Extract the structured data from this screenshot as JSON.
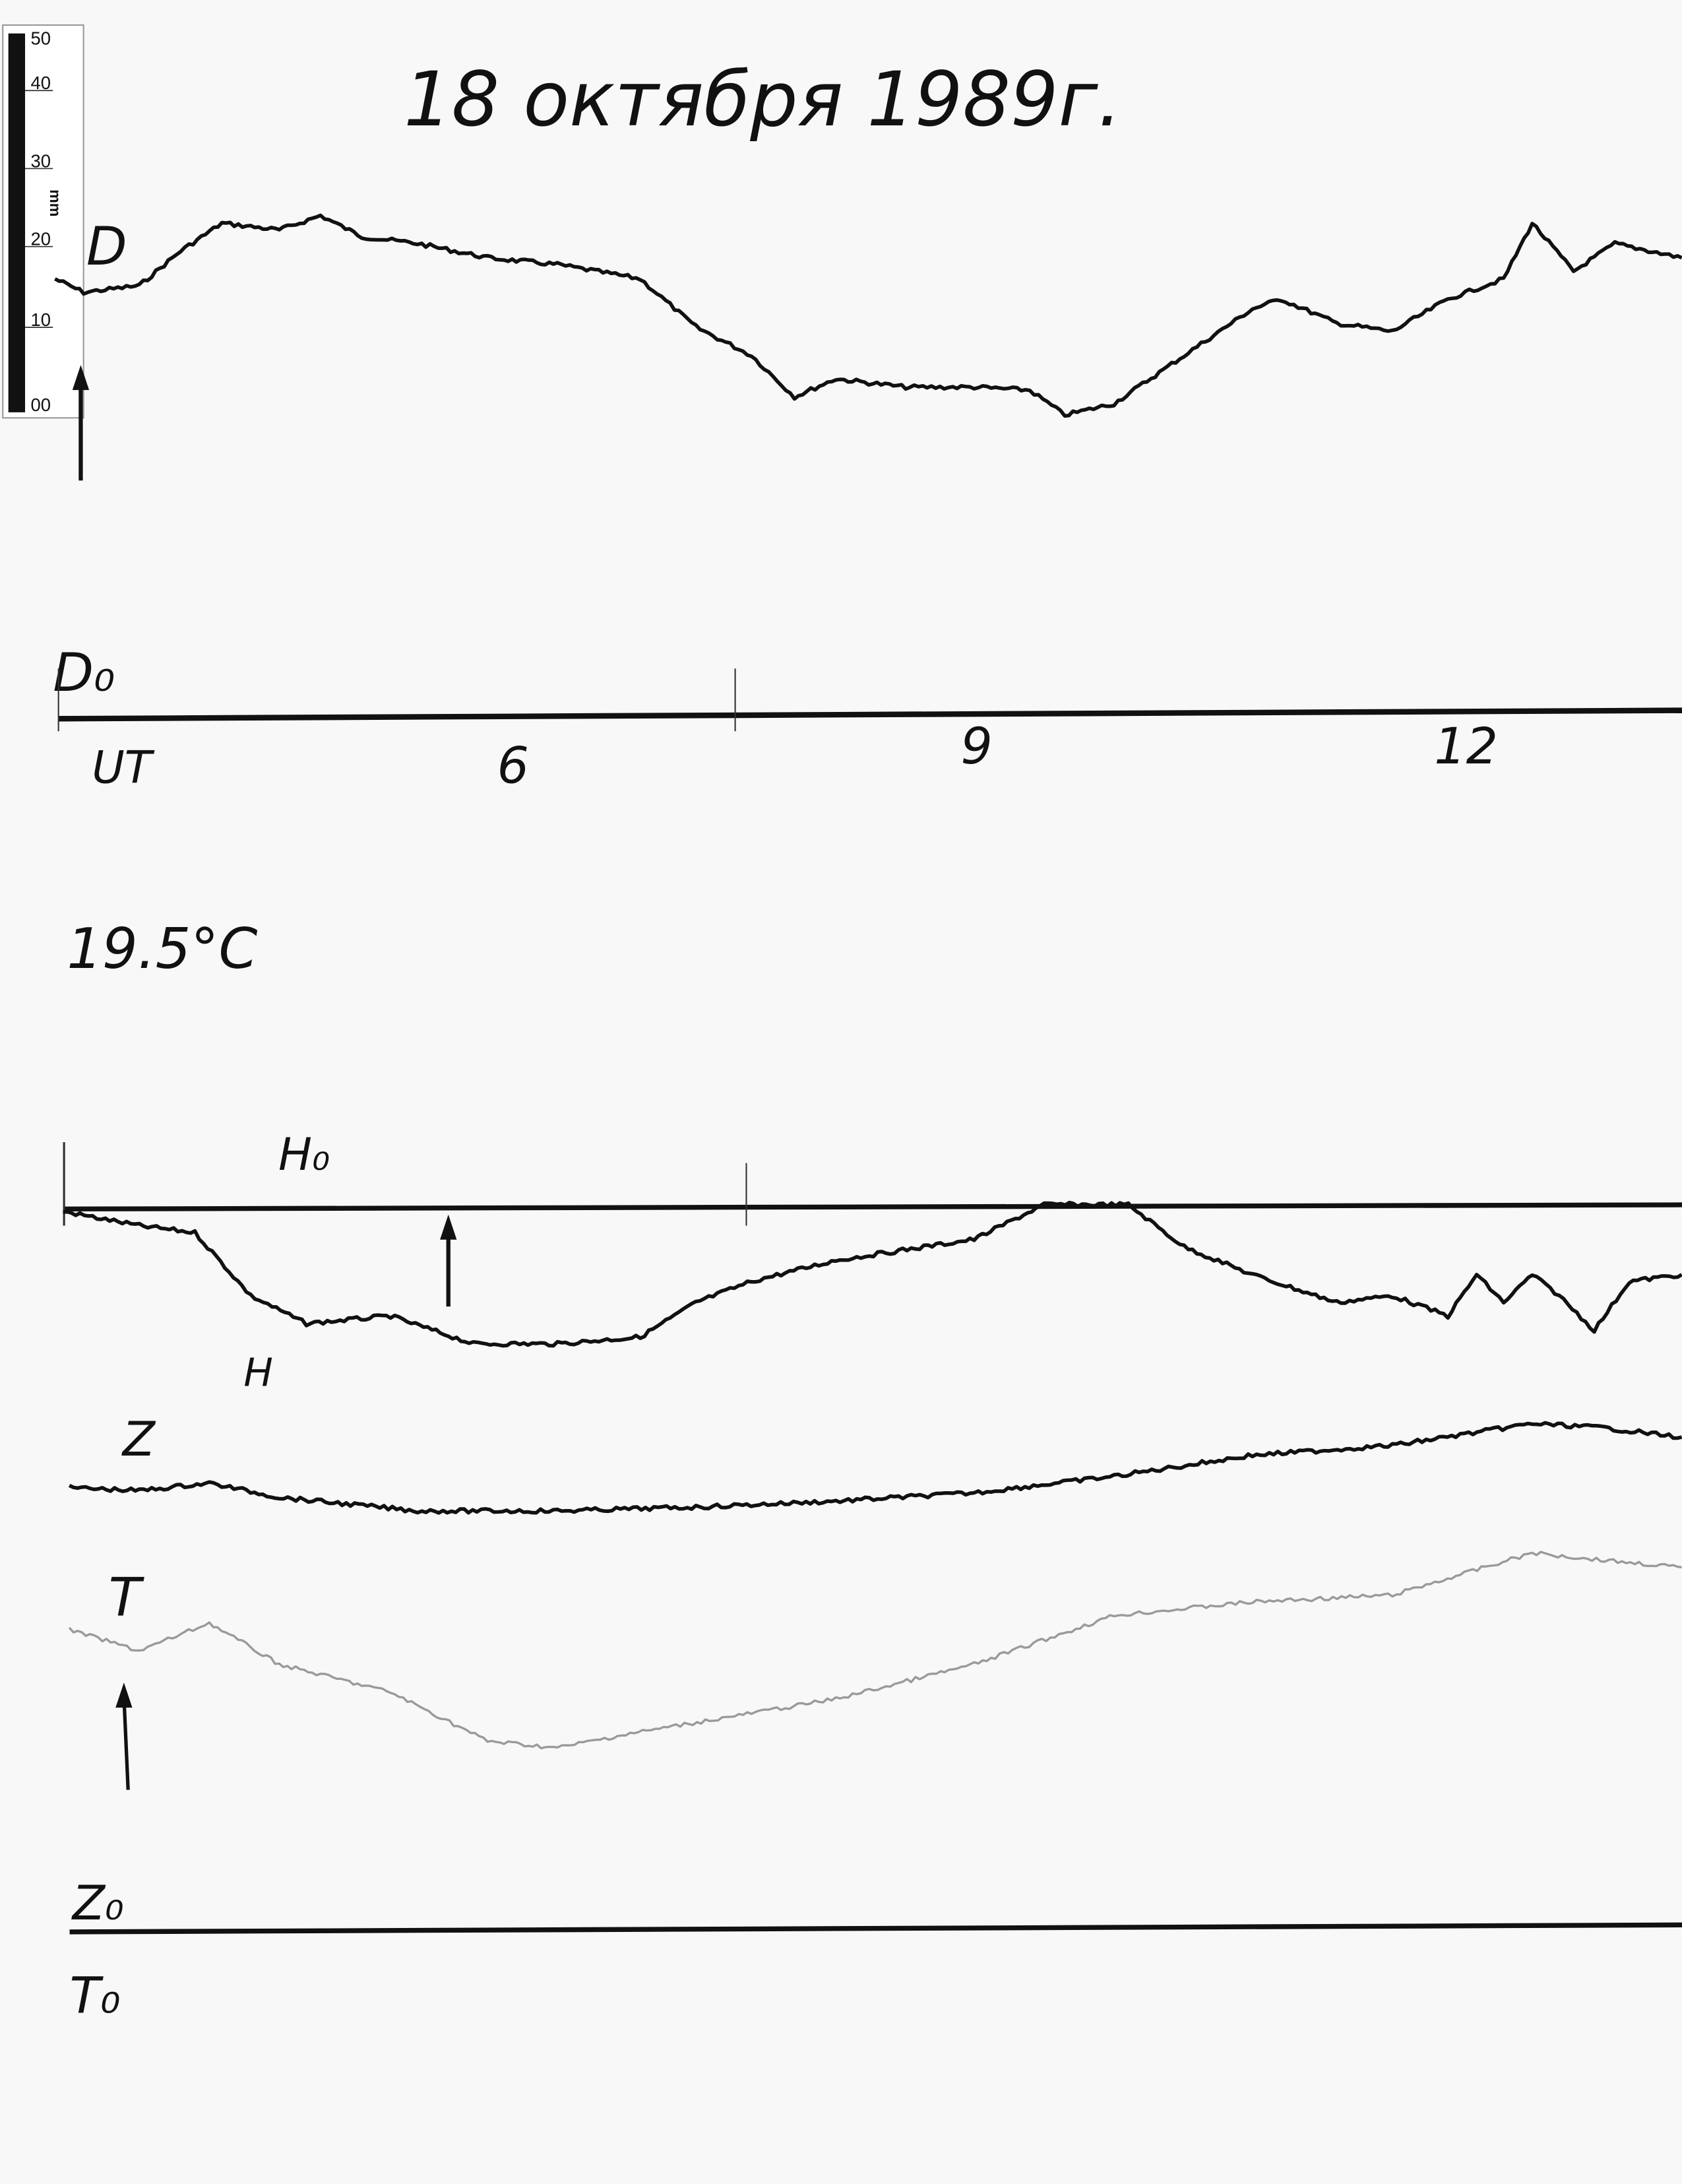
{
  "title": "18 октября 1989г.",
  "scale_ruler": {
    "unit": "mm",
    "ticks": [
      "50",
      "40",
      "30",
      "20",
      "10",
      "00"
    ]
  },
  "labels": {
    "D": "D",
    "D0": "D₀",
    "ut": "UT",
    "temperature": "19.5°C",
    "H0": "H₀",
    "H": "H",
    "Z": "Z",
    "T": "T",
    "Z0": "Z₀",
    "T0": "T₀"
  },
  "colors": {
    "trace": "#111111",
    "temperature_trace": "#9a9a9a",
    "paper": "#f8f8f8"
  },
  "chart_data": {
    "type": "line",
    "title": "18 октября 1989г.",
    "xlabel": "UT",
    "x_ticks": [
      "6",
      "9",
      "12"
    ],
    "x_tick_values": [
      6,
      9,
      12
    ],
    "xlim": [
      3.15,
      13.38
    ],
    "y_unit": "mm deflection from baseline",
    "grid": false,
    "series": [
      {
        "name": "D",
        "baseline": "D₀",
        "points": [
          [
            3.15,
            58.3
          ],
          [
            3.33,
            56.5
          ],
          [
            3.68,
            57.4
          ],
          [
            3.94,
            62.0
          ],
          [
            4.2,
            65.7
          ],
          [
            4.56,
            64.8
          ],
          [
            4.82,
            66.7
          ],
          [
            5.08,
            63.9
          ],
          [
            5.43,
            63.0
          ],
          [
            5.87,
            61.1
          ],
          [
            6.31,
            60.2
          ],
          [
            6.83,
            58.3
          ],
          [
            7.18,
            51.9
          ],
          [
            7.53,
            48.1
          ],
          [
            7.8,
            42.6
          ],
          [
            8.06,
            45.0
          ],
          [
            8.5,
            43.9
          ],
          [
            8.93,
            43.9
          ],
          [
            9.28,
            43.5
          ],
          [
            9.5,
            40.2
          ],
          [
            9.81,
            41.7
          ],
          [
            10.25,
            48.1
          ],
          [
            10.68,
            54.3
          ],
          [
            10.86,
            55.6
          ],
          [
            11.21,
            52.4
          ],
          [
            11.56,
            51.3
          ],
          [
            11.91,
            55.6
          ],
          [
            12.26,
            58.3
          ],
          [
            12.44,
            65.7
          ],
          [
            12.7,
            59.3
          ],
          [
            12.96,
            63.0
          ],
          [
            13.38,
            61.1
          ]
        ]
      },
      {
        "name": "H",
        "baseline": "H₀",
        "points": [
          [
            3.2,
            -0.7
          ],
          [
            3.68,
            -2.6
          ],
          [
            4.03,
            -3.5
          ],
          [
            4.38,
            -11.9
          ],
          [
            4.73,
            -15.6
          ],
          [
            5.26,
            -14.6
          ],
          [
            5.78,
            -18.3
          ],
          [
            6.31,
            -18.3
          ],
          [
            6.83,
            -17.4
          ],
          [
            7.18,
            -12.8
          ],
          [
            7.53,
            -10.0
          ],
          [
            8.06,
            -7.2
          ],
          [
            8.93,
            -4.4
          ],
          [
            9.37,
            0.2
          ],
          [
            9.9,
            0.2
          ],
          [
            10.25,
            -5.4
          ],
          [
            10.68,
            -9.1
          ],
          [
            11.21,
            -12.8
          ],
          [
            11.56,
            -11.9
          ],
          [
            11.91,
            -14.6
          ],
          [
            12.09,
            -9.1
          ],
          [
            12.26,
            -12.8
          ],
          [
            12.44,
            -9.1
          ],
          [
            12.61,
            -11.9
          ],
          [
            12.83,
            -16.5
          ],
          [
            13.05,
            -10.0
          ],
          [
            13.38,
            -9.1
          ]
        ]
      },
      {
        "name": "Z",
        "baseline": "Z₀",
        "points": [
          [
            3.24,
            58.7
          ],
          [
            3.68,
            58.3
          ],
          [
            4.12,
            59.3
          ],
          [
            4.56,
            57.4
          ],
          [
            5.43,
            55.6
          ],
          [
            6.31,
            55.6
          ],
          [
            7.18,
            56.1
          ],
          [
            8.06,
            56.9
          ],
          [
            8.93,
            58.0
          ],
          [
            9.81,
            60.2
          ],
          [
            10.68,
            63.0
          ],
          [
            11.56,
            64.3
          ],
          [
            12.44,
            67.2
          ],
          [
            12.87,
            66.7
          ],
          [
            13.38,
            65.4
          ]
        ]
      },
      {
        "name": "T",
        "baseline": "T₀",
        "points": [
          [
            3.24,
            39.8
          ],
          [
            3.68,
            37.0
          ],
          [
            4.12,
            40.7
          ],
          [
            4.56,
            35.2
          ],
          [
            5.26,
            31.5
          ],
          [
            5.87,
            25.0
          ],
          [
            6.31,
            24.1
          ],
          [
            6.74,
            25.9
          ],
          [
            7.53,
            28.7
          ],
          [
            8.06,
            30.6
          ],
          [
            8.93,
            35.2
          ],
          [
            9.81,
            41.7
          ],
          [
            10.68,
            43.5
          ],
          [
            11.56,
            44.4
          ],
          [
            12.44,
            50.0
          ],
          [
            12.87,
            49.1
          ],
          [
            13.38,
            48.1
          ]
        ]
      }
    ]
  }
}
